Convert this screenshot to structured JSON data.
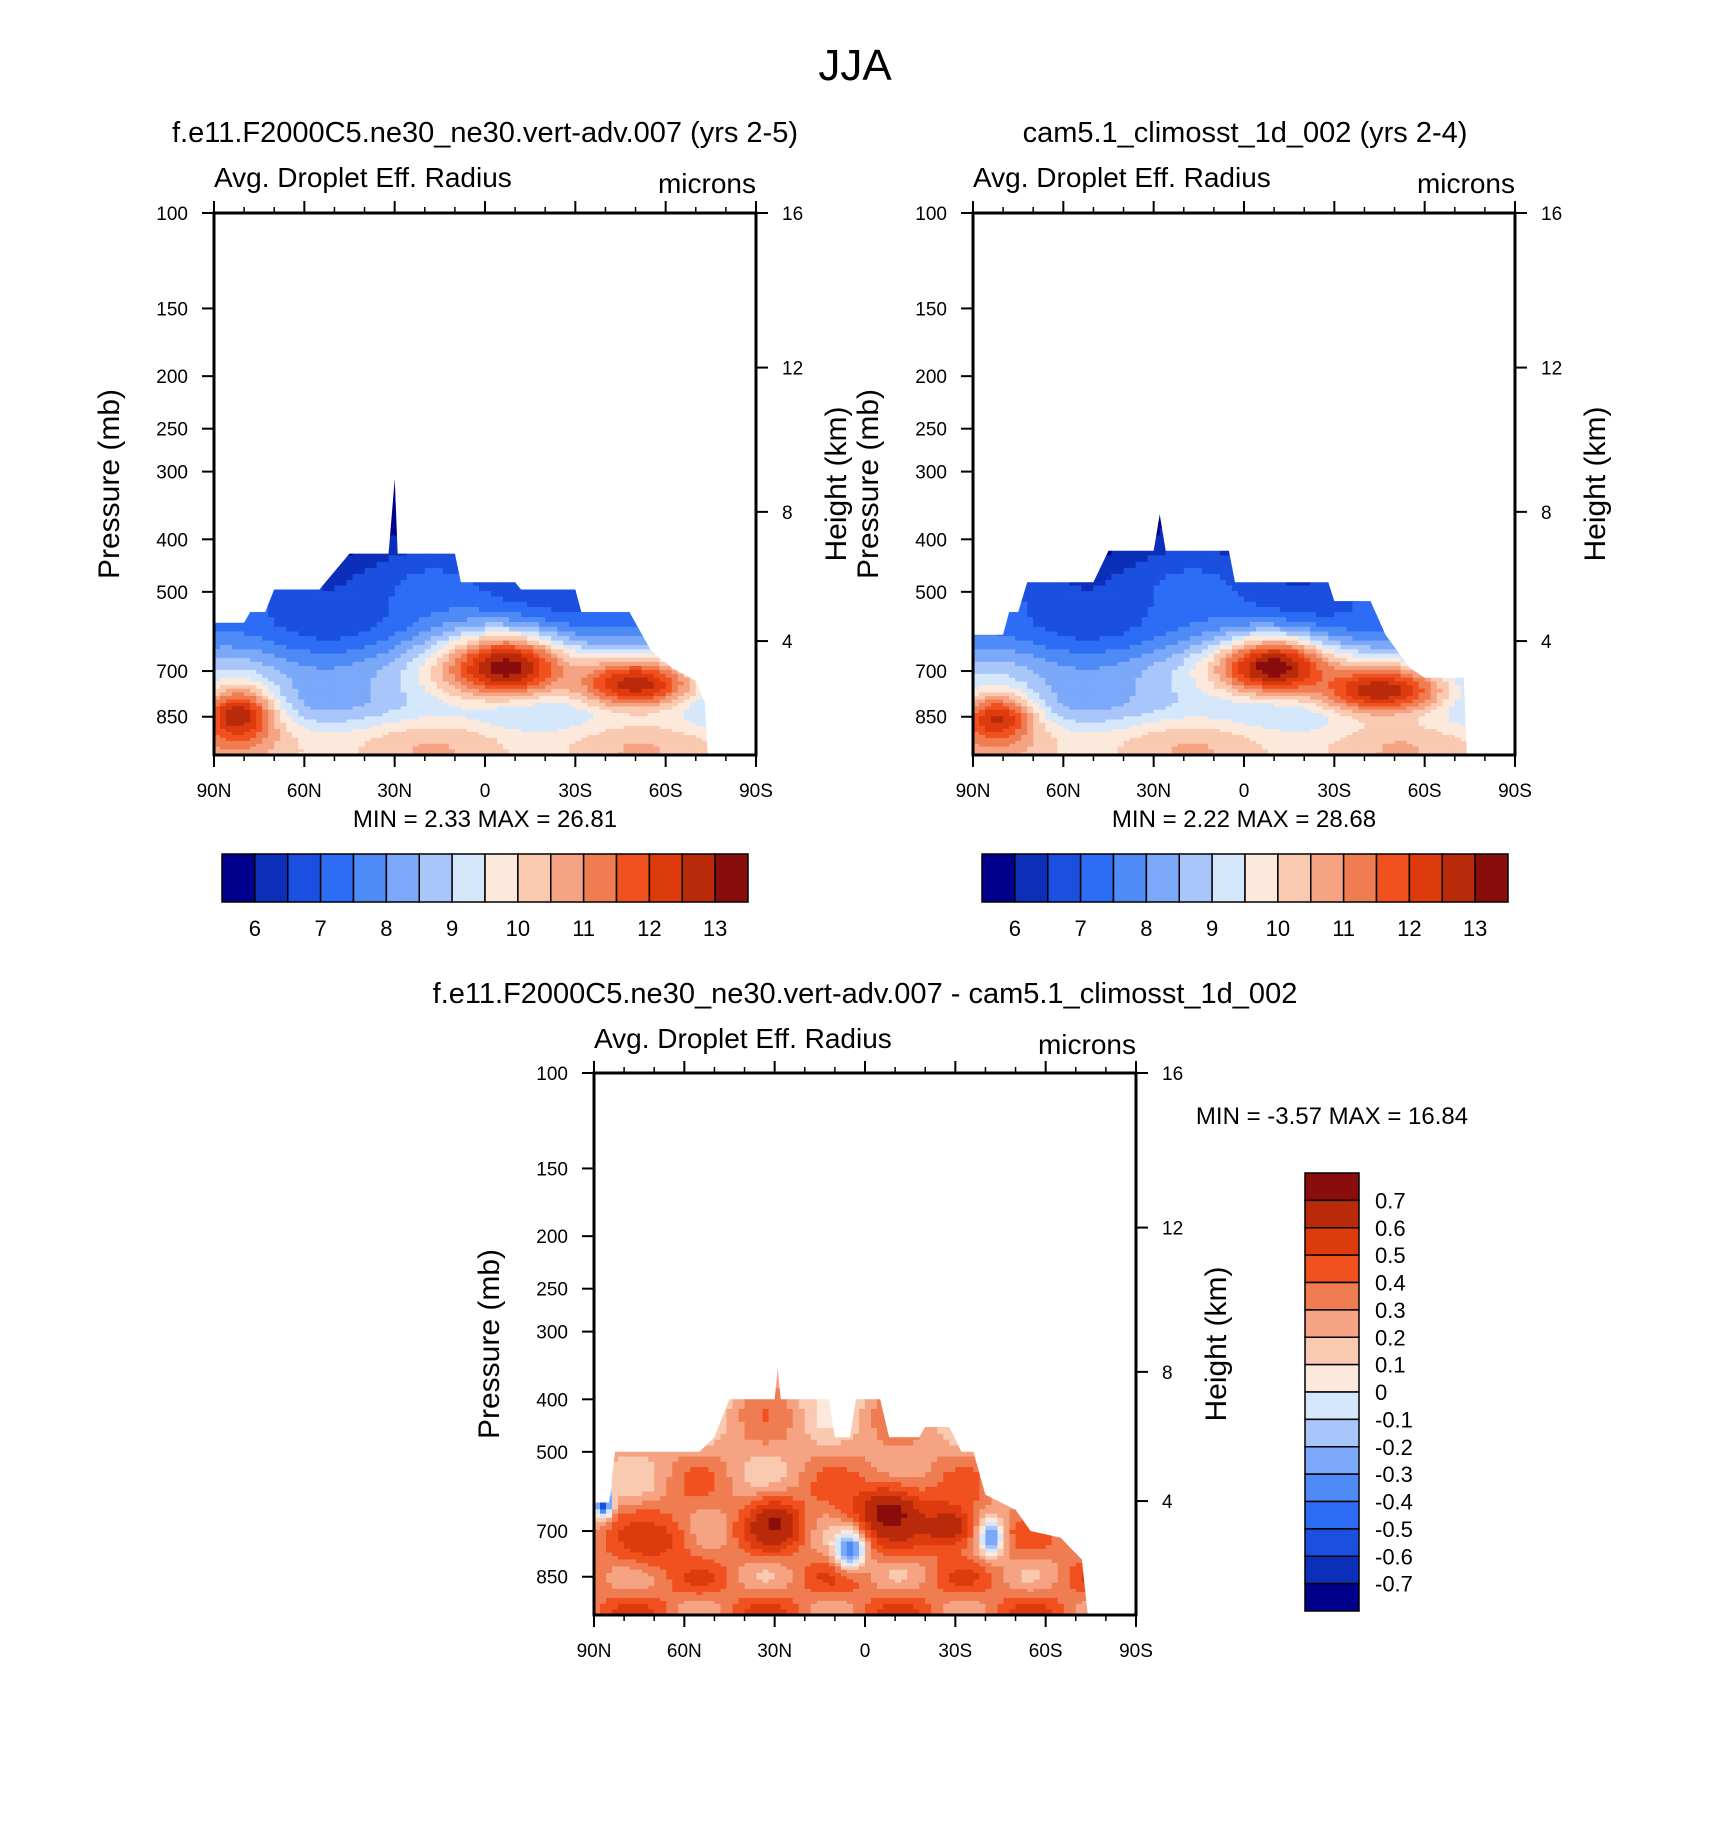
{
  "figure": {
    "title": "JJA",
    "colors": {
      "abs_palette": [
        "#00008c",
        "#0b2fb8",
        "#1b4fe0",
        "#2d6cf5",
        "#4f8bf7",
        "#7ba8f8",
        "#a9c6fa",
        "#d5e7fb",
        "#fde9dc",
        "#f9c9b0",
        "#f5a383",
        "#f07c52",
        "#f1501f",
        "#dd3a0e",
        "#b82a0a",
        "#8a0d0d"
      ],
      "diff_palette": [
        "#00008c",
        "#0b2fb8",
        "#1b4fe0",
        "#2d6cf5",
        "#4f8bf7",
        "#7ba8f8",
        "#a9c6fa",
        "#d5e7fb",
        "#fde9dc",
        "#f9c9b0",
        "#f5a383",
        "#f07c52",
        "#f1501f",
        "#dd3a0e",
        "#b82a0a",
        "#8a0d0d"
      ]
    }
  },
  "chart_data": [
    {
      "type": "heatmap",
      "id": "panel1",
      "title": "f.e11.F2000C5.ne30_ne30.vert-adv.007 (yrs 2-5)",
      "subtitle_left": "Avg. Droplet Eff. Radius",
      "subtitle_right": "microns",
      "ylabel": "Pressure (mb)",
      "ylabel_right": "Height (km)",
      "pressure_ticks": [
        100,
        150,
        200,
        250,
        300,
        400,
        500,
        700,
        850
      ],
      "pressure_range": [
        100,
        1000
      ],
      "height_ticks": [
        16,
        12,
        8,
        4
      ],
      "lat_tick_labels": [
        "90N",
        "60N",
        "30N",
        "0",
        "30S",
        "60S",
        "90S"
      ],
      "lat_range": [
        90,
        -90
      ],
      "stats": "MIN =   2.33  MAX =  26.81",
      "colorbar_labels": [
        "6",
        "7",
        "8",
        "9",
        "10",
        "11",
        "12",
        "13"
      ],
      "colorbar_levels": [
        5.5,
        6,
        6.5,
        7,
        7.5,
        8,
        8.5,
        9,
        9.5,
        10,
        10.5,
        11,
        11.5,
        12,
        12.5,
        13,
        13.5
      ],
      "data_top_profile": [
        [
          90,
          570
        ],
        [
          80,
          570
        ],
        [
          78,
          545
        ],
        [
          73,
          545
        ],
        [
          70,
          495
        ],
        [
          55,
          495
        ],
        [
          45,
          425
        ],
        [
          32,
          425
        ],
        [
          30,
          310
        ],
        [
          29,
          425
        ],
        [
          10,
          425
        ],
        [
          8,
          480
        ],
        [
          -10,
          480
        ],
        [
          -12,
          495
        ],
        [
          -30,
          495
        ],
        [
          -32,
          545
        ],
        [
          -48,
          545
        ],
        [
          -55,
          640
        ],
        [
          -62,
          690
        ],
        [
          -70,
          730
        ],
        [
          -73,
          800
        ],
        [
          -74,
          1000
        ],
        [
          90,
          1000
        ]
      ],
      "hotspots": [
        {
          "lat": -7,
          "p": 690,
          "value": 13.3,
          "radius_lat": 22,
          "radius_p": 100
        },
        {
          "lat": -50,
          "p": 740,
          "value": 12.8,
          "radius_lat": 20,
          "radius_p": 80
        },
        {
          "lat": 82,
          "p": 850,
          "value": 12.9,
          "radius_lat": 12,
          "radius_p": 100
        }
      ]
    },
    {
      "type": "heatmap",
      "id": "panel2",
      "title": "cam5.1_climosst_1d_002 (yrs 2-4)",
      "subtitle_left": "Avg. Droplet Eff. Radius",
      "subtitle_right": "microns",
      "ylabel": "Pressure (mb)",
      "ylabel_right": "Height (km)",
      "pressure_ticks": [
        100,
        150,
        200,
        250,
        300,
        400,
        500,
        700,
        850
      ],
      "pressure_range": [
        100,
        1000
      ],
      "height_ticks": [
        16,
        12,
        8,
        4
      ],
      "lat_tick_labels": [
        "90N",
        "60N",
        "30N",
        "0",
        "30S",
        "60S",
        "90S"
      ],
      "lat_range": [
        90,
        -90
      ],
      "stats": "MIN =   2.22  MAX =  28.68",
      "colorbar_labels": [
        "6",
        "7",
        "8",
        "9",
        "10",
        "11",
        "12",
        "13"
      ],
      "colorbar_levels": [
        5.5,
        6,
        6.5,
        7,
        7.5,
        8,
        8.5,
        9,
        9.5,
        10,
        10.5,
        11,
        11.5,
        12,
        12.5,
        13,
        13.5
      ],
      "data_top_profile": [
        [
          90,
          600
        ],
        [
          80,
          600
        ],
        [
          78,
          545
        ],
        [
          75,
          545
        ],
        [
          72,
          480
        ],
        [
          60,
          480
        ],
        [
          50,
          480
        ],
        [
          45,
          420
        ],
        [
          30,
          420
        ],
        [
          28,
          360
        ],
        [
          26,
          420
        ],
        [
          5,
          420
        ],
        [
          3,
          480
        ],
        [
          -10,
          480
        ],
        [
          -12,
          480
        ],
        [
          -20,
          480
        ],
        [
          -28,
          480
        ],
        [
          -30,
          520
        ],
        [
          -42,
          520
        ],
        [
          -47,
          600
        ],
        [
          -55,
          690
        ],
        [
          -60,
          720
        ],
        [
          -73,
          720
        ],
        [
          -74,
          1000
        ],
        [
          90,
          1000
        ]
      ],
      "hotspots": [
        {
          "lat": -10,
          "p": 690,
          "value": 13.4,
          "radius_lat": 20,
          "radius_p": 90
        },
        {
          "lat": -45,
          "p": 760,
          "value": 12.9,
          "radius_lat": 22,
          "radius_p": 80
        },
        {
          "lat": 82,
          "p": 860,
          "value": 12.6,
          "radius_lat": 12,
          "radius_p": 90
        }
      ]
    },
    {
      "type": "heatmap",
      "id": "panel3",
      "title": "f.e11.F2000C5.ne30_ne30.vert-adv.007 - cam5.1_climosst_1d_002",
      "subtitle_left": "Avg. Droplet Eff. Radius",
      "subtitle_right": "microns",
      "ylabel": "Pressure (mb)",
      "ylabel_right": "Height (km)",
      "pressure_ticks": [
        100,
        150,
        200,
        250,
        300,
        400,
        500,
        700,
        850
      ],
      "pressure_range": [
        100,
        1000
      ],
      "height_ticks": [
        16,
        12,
        8,
        4
      ],
      "lat_tick_labels": [
        "90N",
        "60N",
        "30N",
        "0",
        "30S",
        "60S",
        "90S"
      ],
      "lat_range": [
        90,
        -90
      ],
      "stats": "MIN =  -3.57  MAX =  16.84",
      "colorbar_labels": [
        "0.7",
        "0.6",
        "0.5",
        "0.4",
        "0.3",
        "0.2",
        "0.1",
        "0",
        "-0.1",
        "-0.2",
        "-0.3",
        "-0.4",
        "-0.5",
        "-0.6",
        "-0.7"
      ],
      "colorbar_levels": [
        -0.75,
        -0.7,
        -0.6,
        -0.5,
        -0.4,
        -0.3,
        -0.2,
        -0.1,
        0,
        0.1,
        0.2,
        0.3,
        0.4,
        0.5,
        0.6,
        0.7,
        0.75
      ],
      "data_top_profile": [
        [
          90,
          620
        ],
        [
          85,
          620
        ],
        [
          83,
          500
        ],
        [
          55,
          500
        ],
        [
          50,
          470
        ],
        [
          45,
          400
        ],
        [
          30,
          400
        ],
        [
          29,
          350
        ],
        [
          28,
          400
        ],
        [
          12,
          400
        ],
        [
          10,
          470
        ],
        [
          5,
          470
        ],
        [
          3,
          400
        ],
        [
          -5,
          400
        ],
        [
          -8,
          470
        ],
        [
          -18,
          470
        ],
        [
          -20,
          450
        ],
        [
          -28,
          450
        ],
        [
          -32,
          500
        ],
        [
          -36,
          500
        ],
        [
          -40,
          600
        ],
        [
          -50,
          640
        ],
        [
          -55,
          700
        ],
        [
          -65,
          720
        ],
        [
          -72,
          790
        ],
        [
          -74,
          1000
        ],
        [
          90,
          1000
        ]
      ],
      "hotspots": [
        {
          "lat": -8,
          "p": 650,
          "value": 0.75,
          "radius_lat": 14,
          "radius_p": 90
        },
        {
          "lat": 30,
          "p": 680,
          "value": 0.72,
          "radius_lat": 10,
          "radius_p": 80
        },
        {
          "lat": -28,
          "p": 690,
          "value": 0.7,
          "radius_lat": 10,
          "radius_p": 70
        },
        {
          "lat": 70,
          "p": 730,
          "value": 0.55,
          "radius_lat": 14,
          "radius_p": 90
        },
        {
          "lat": 5,
          "p": 760,
          "value": -0.4,
          "radius_lat": 5,
          "radius_p": 60
        },
        {
          "lat": 87,
          "p": 620,
          "value": -0.6,
          "radius_lat": 3,
          "radius_p": 40
        },
        {
          "lat": -42,
          "p": 720,
          "value": -0.3,
          "radius_lat": 4,
          "radius_p": 60
        }
      ]
    }
  ]
}
